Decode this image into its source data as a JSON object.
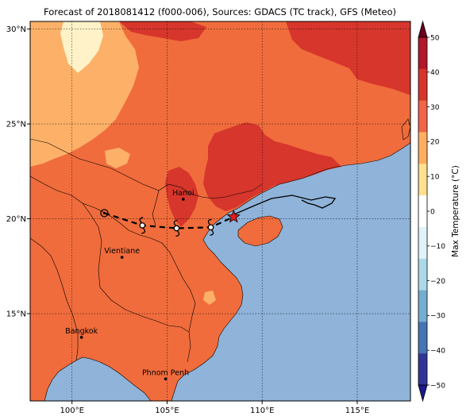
{
  "title": "Forecast of 2018081412 (f000-006), Sources: GDACS (TC track), GFS (Meteo)",
  "map": {
    "lat_ticks": [
      "30°N",
      "25°N",
      "20°N",
      "15°N"
    ],
    "lon_ticks": [
      "100°E",
      "105°E",
      "110°E",
      "115°E"
    ],
    "extent": {
      "lon": [
        97.8,
        117.8
      ],
      "lat": [
        10.4,
        30.4
      ]
    },
    "cities": [
      {
        "name": "Hanoi",
        "lon": 105.85,
        "lat": 21.03
      },
      {
        "name": "Vientiane",
        "lon": 102.63,
        "lat": 17.97
      },
      {
        "name": "Bangkok",
        "lon": 100.5,
        "lat": 13.75
      },
      {
        "name": "Phnom Penh",
        "lon": 104.92,
        "lat": 11.56
      }
    ],
    "storm_marker": {
      "lon": 108.5,
      "lat": 20.1
    },
    "forecast_track_points": [
      {
        "lon": 101.7,
        "lat": 20.3,
        "symbol": "remnant-low-icon"
      },
      {
        "lon": 103.7,
        "lat": 19.65,
        "symbol": "tropical-storm-icon"
      },
      {
        "lon": 105.5,
        "lat": 19.5,
        "symbol": "tropical-storm-icon"
      },
      {
        "lon": 107.3,
        "lat": 19.55,
        "symbol": "tropical-storm-icon"
      }
    ]
  },
  "colorbar": {
    "label": "Max Temperature (°C)",
    "ticks": [
      "50",
      "40",
      "30",
      "20",
      "10",
      "0",
      "−10",
      "−20",
      "−30",
      "−40",
      "−50"
    ],
    "colors": [
      "#67001f",
      "#b2182b",
      "#d6352c",
      "#ef6548",
      "#fdae61",
      "#fee090",
      "#ffffff",
      "#e0f3f8",
      "#abd9e9",
      "#74add1",
      "#4575b4",
      "#313695",
      "#1a1a8c"
    ]
  },
  "colors": {
    "sea": "#8fb3d9",
    "land_20_30": "#f06c3c",
    "land_30_40": "#d6362c",
    "land_10_20": "#fdb168",
    "land_0_10": "#fff2c8"
  }
}
